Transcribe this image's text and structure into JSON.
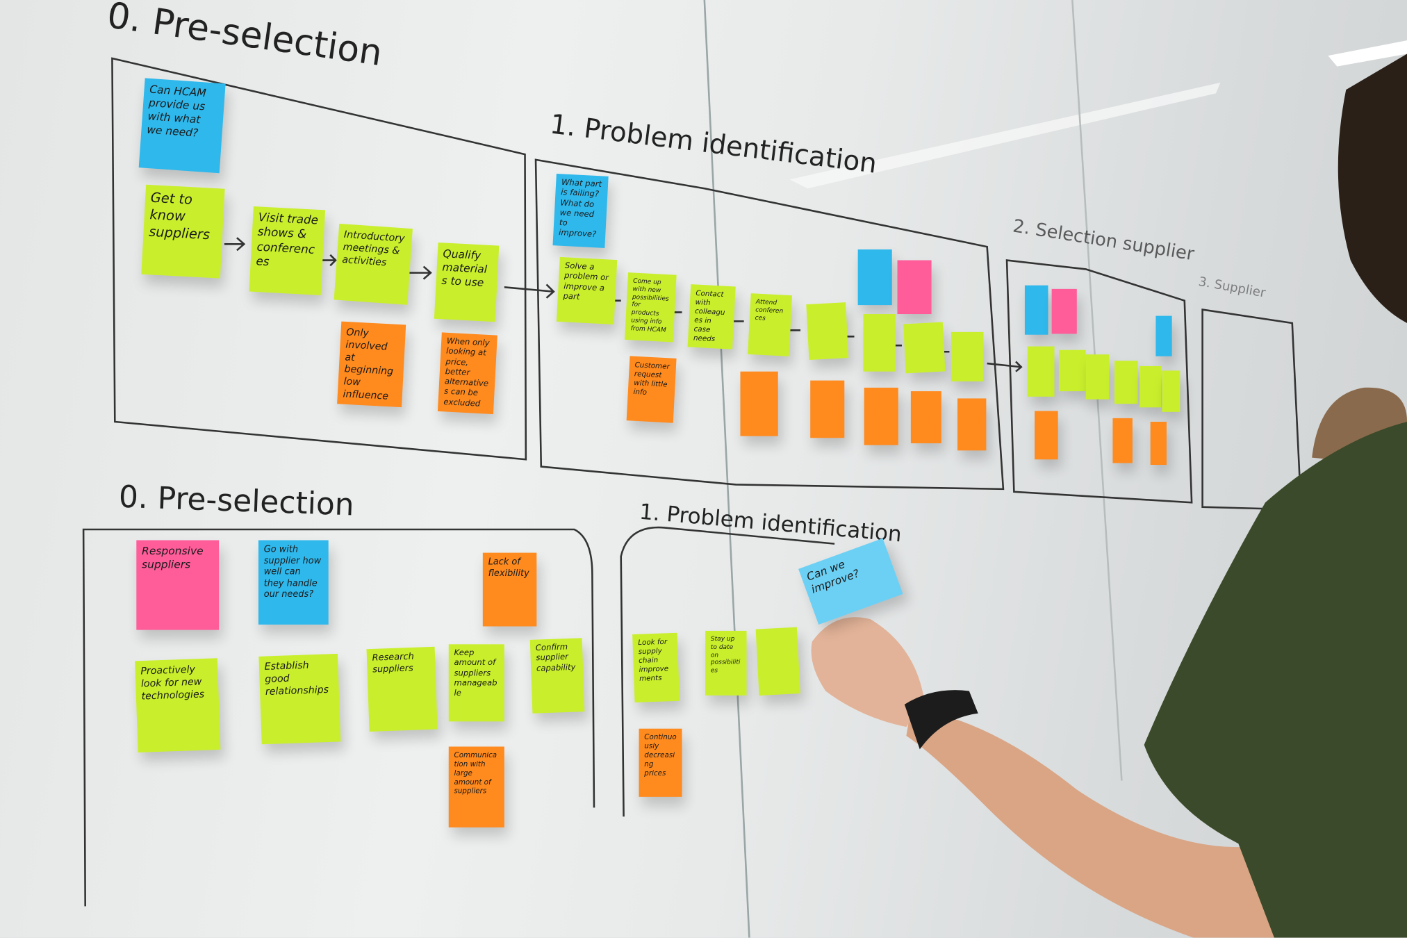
{
  "headings": {
    "top_pre_selection": "0. Pre-selection",
    "top_problem_identification": "1. Problem identification",
    "top_selection": "2. Selection supplier",
    "top_stage3": "3. Supplier",
    "bottom_pre_selection": "0. Pre-selection",
    "bottom_problem_identification": "1. Problem identification"
  },
  "colors": {
    "green_note": "#c9ef2c",
    "orange_note": "#ff8a1e",
    "blue_note": "#2fb8ec",
    "pink_note": "#ff5c9a",
    "shirt": "#3b4a2a"
  },
  "top_notes": [
    "Can HCAM provide us with what we need?",
    "Get to know suppliers",
    "Visit trade shows & conferences",
    "Introductory meetings & activities",
    "Qualify materials to use",
    "Only involved at beginning low influence",
    "When only looking at price, better alternatives can be excluded",
    "What part is failing? What do we need to improve?",
    "Solve a problem or improve a part",
    "Come up with new possibilities for products using info from HCAM",
    "Contact with colleagues in case needs",
    "Attend conferences",
    "Customer request with little info"
  ],
  "bottom_notes": [
    "Responsive suppliers",
    "Go with supplier how well can they handle our needs?",
    "Lack of flexibility",
    "Proactively look for new technologies",
    "Establish good relationships",
    "Research suppliers",
    "Keep amount of suppliers manageable",
    "Confirm supplier capability",
    "Communication with large amount of suppliers",
    "Look for supply chain improvements",
    "Stay up to date on possibilities",
    "Continuously decreasing prices",
    "Can we improve?"
  ]
}
